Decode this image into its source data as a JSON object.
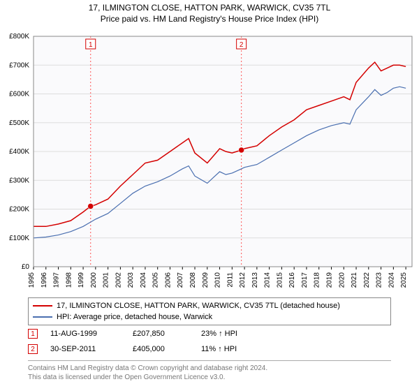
{
  "title_line1": "17, ILMINGTON CLOSE, HATTON PARK, WARWICK, CV35 7TL",
  "title_line2": "Price paid vs. HM Land Registry's House Price Index (HPI)",
  "chart": {
    "type": "line",
    "background_color": "#ffffff",
    "plot_bg_color": "#fafafc",
    "grid_color": "#dddddd",
    "border_color": "#888888",
    "xlim": [
      1995,
      2025.5
    ],
    "ylim": [
      0,
      800000
    ],
    "ytick_step": 100000,
    "ytick_labels": [
      "£0",
      "£100K",
      "£200K",
      "£300K",
      "£400K",
      "£500K",
      "£600K",
      "£700K",
      "£800K"
    ],
    "xticks": [
      1995,
      1996,
      1997,
      1998,
      1999,
      2000,
      2001,
      2002,
      2003,
      2004,
      2005,
      2006,
      2007,
      2008,
      2009,
      2010,
      2011,
      2012,
      2013,
      2014,
      2015,
      2016,
      2017,
      2018,
      2019,
      2020,
      2021,
      2022,
      2023,
      2024,
      2025
    ],
    "series": [
      {
        "name": "property",
        "label": "17, ILMINGTON CLOSE, HATTON PARK, WARWICK, CV35 7TL (detached house)",
        "color": "#d40000",
        "line_width": 1.5,
        "points": [
          [
            1995,
            140000
          ],
          [
            1996,
            140000
          ],
          [
            1997,
            148000
          ],
          [
            1998,
            160000
          ],
          [
            1999,
            190000
          ],
          [
            1999.6,
            210000
          ],
          [
            2000,
            215000
          ],
          [
            2001,
            235000
          ],
          [
            2002,
            280000
          ],
          [
            2003,
            320000
          ],
          [
            2004,
            360000
          ],
          [
            2005,
            370000
          ],
          [
            2006,
            400000
          ],
          [
            2007,
            430000
          ],
          [
            2007.5,
            445000
          ],
          [
            2008,
            395000
          ],
          [
            2009,
            360000
          ],
          [
            2009.5,
            385000
          ],
          [
            2010,
            410000
          ],
          [
            2010.5,
            400000
          ],
          [
            2011,
            395000
          ],
          [
            2011.75,
            405000
          ],
          [
            2012,
            410000
          ],
          [
            2013,
            420000
          ],
          [
            2014,
            455000
          ],
          [
            2015,
            485000
          ],
          [
            2016,
            510000
          ],
          [
            2017,
            545000
          ],
          [
            2018,
            560000
          ],
          [
            2019,
            575000
          ],
          [
            2020,
            590000
          ],
          [
            2020.5,
            580000
          ],
          [
            2021,
            640000
          ],
          [
            2022,
            690000
          ],
          [
            2022.5,
            710000
          ],
          [
            2023,
            680000
          ],
          [
            2023.5,
            690000
          ],
          [
            2024,
            700000
          ],
          [
            2024.5,
            700000
          ],
          [
            2025,
            695000
          ]
        ]
      },
      {
        "name": "hpi",
        "label": "HPI: Average price, detached house, Warwick",
        "color": "#4a6fb0",
        "line_width": 1.2,
        "points": [
          [
            1995,
            100000
          ],
          [
            1996,
            103000
          ],
          [
            1997,
            110000
          ],
          [
            1998,
            122000
          ],
          [
            1999,
            140000
          ],
          [
            2000,
            165000
          ],
          [
            2001,
            185000
          ],
          [
            2002,
            220000
          ],
          [
            2003,
            255000
          ],
          [
            2004,
            280000
          ],
          [
            2005,
            295000
          ],
          [
            2006,
            315000
          ],
          [
            2007,
            340000
          ],
          [
            2007.5,
            350000
          ],
          [
            2008,
            315000
          ],
          [
            2009,
            290000
          ],
          [
            2009.5,
            310000
          ],
          [
            2010,
            330000
          ],
          [
            2010.5,
            320000
          ],
          [
            2011,
            325000
          ],
          [
            2011.75,
            340000
          ],
          [
            2012,
            345000
          ],
          [
            2013,
            355000
          ],
          [
            2014,
            380000
          ],
          [
            2015,
            405000
          ],
          [
            2016,
            430000
          ],
          [
            2017,
            455000
          ],
          [
            2018,
            475000
          ],
          [
            2019,
            490000
          ],
          [
            2020,
            500000
          ],
          [
            2020.5,
            495000
          ],
          [
            2021,
            545000
          ],
          [
            2022,
            590000
          ],
          [
            2022.5,
            615000
          ],
          [
            2023,
            595000
          ],
          [
            2023.5,
            605000
          ],
          [
            2024,
            620000
          ],
          [
            2024.5,
            625000
          ],
          [
            2025,
            620000
          ]
        ]
      }
    ],
    "markers": [
      {
        "num": "1",
        "x": 1999.6,
        "y": 210000,
        "color": "#d40000"
      },
      {
        "num": "2",
        "x": 2011.75,
        "y": 405000,
        "color": "#d40000"
      }
    ],
    "vlines": [
      {
        "x": 1999.6,
        "color": "#ff5555"
      },
      {
        "x": 2011.75,
        "color": "#ff5555"
      }
    ]
  },
  "legend": {
    "items": [
      {
        "color": "#d40000",
        "label": "17, ILMINGTON CLOSE, HATTON PARK, WARWICK, CV35 7TL (detached house)"
      },
      {
        "color": "#4a6fb0",
        "label": "HPI: Average price, detached house, Warwick"
      }
    ]
  },
  "transactions": [
    {
      "num": "1",
      "color": "#d40000",
      "date": "11-AUG-1999",
      "price": "£207,850",
      "pct": "23% ↑ HPI"
    },
    {
      "num": "2",
      "color": "#d40000",
      "date": "30-SEP-2011",
      "price": "£405,000",
      "pct": "11% ↑ HPI"
    }
  ],
  "footer_line1": "Contains HM Land Registry data © Crown copyright and database right 2024.",
  "footer_line2": "This data is licensed under the Open Government Licence v3.0."
}
